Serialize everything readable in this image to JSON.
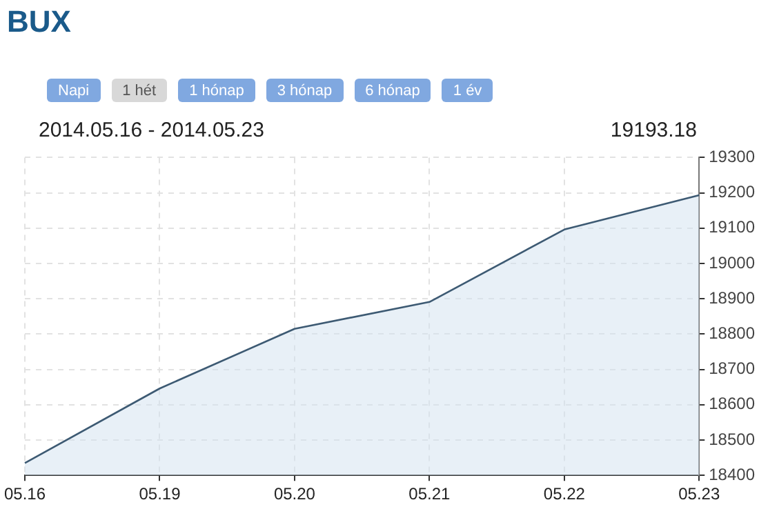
{
  "chart_data": {
    "type": "area",
    "title": "BUX",
    "subtitle": "2014.05.16 - 2014.05.23",
    "annotations": [
      "Napi",
      "1 hét",
      "1 hónap",
      "3 hónap",
      "6 hónap",
      "1 év",
      "19193.18"
    ],
    "categories": [
      "05.16",
      "05.19",
      "05.20",
      "05.21",
      "05.22",
      "05.23"
    ],
    "series": [
      {
        "color": "#3d5a73",
        "values": [
          18435,
          18646,
          18815,
          18891,
          19096,
          19193.18
        ]
      }
    ],
    "ylim": [
      18400,
      19300
    ],
    "yticks": [
      18400,
      18500,
      18600,
      18700,
      18800,
      18900,
      19000,
      19100,
      19200,
      19300
    ],
    "grid": true,
    "legend": false,
    "marker": "none",
    "line_style": "solid"
  }
}
